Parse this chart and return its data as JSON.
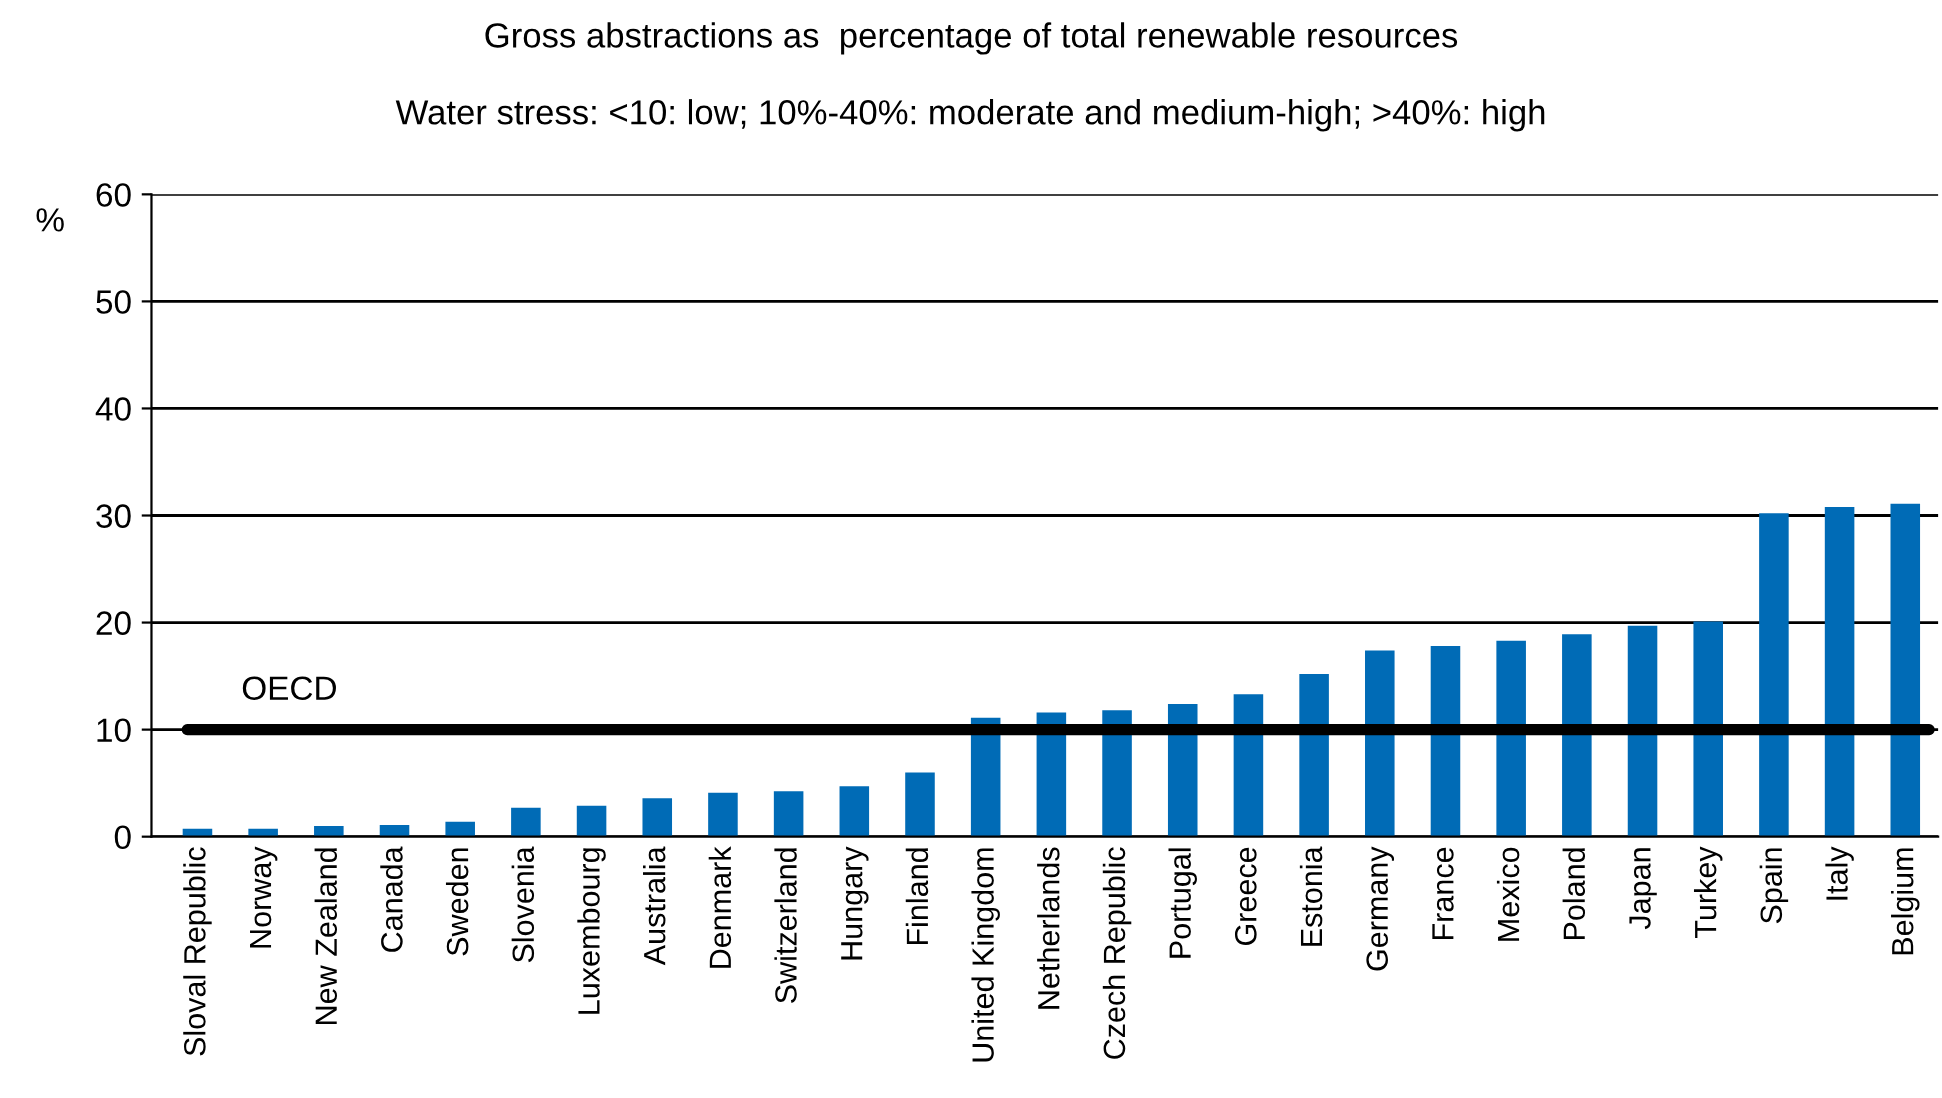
{
  "chart_data": {
    "type": "bar",
    "title": "Gross abstractions as  percentage of total renewable resources",
    "subtitle": "Water stress: <10: low; 10%-40%: moderate and medium-high; >40%: high",
    "ylabel": "%",
    "categories": [
      "Sloval Republic",
      "Norway",
      "New Zealand",
      "Canada",
      "Sweden",
      "Slovenia",
      "Luxembourg",
      "Australia",
      "Denmark",
      "Switzerland",
      "Hungary",
      "Finland",
      "United Kingdom",
      "Netherlands",
      "Czech Republic",
      "Portugal",
      "Greece",
      "Estonia",
      "Germany",
      "France",
      "Mexico",
      "Poland",
      "Japan",
      "Turkey",
      "Spain",
      "Italy",
      "Belgium"
    ],
    "values": [
      0.75,
      0.75,
      1.0,
      1.1,
      1.4,
      2.7,
      2.9,
      3.6,
      4.1,
      4.25,
      4.7,
      6.0,
      11.1,
      11.6,
      11.8,
      12.4,
      13.3,
      15.2,
      17.4,
      17.8,
      18.3,
      18.9,
      19.7,
      20.1,
      30.2,
      30.8,
      31.1
    ],
    "color": "#006bb6",
    "ylim": [
      0,
      60
    ],
    "yticks": [
      0,
      10,
      20,
      30,
      40,
      50,
      60
    ],
    "grid": "y",
    "ref_lines": [
      {
        "axis": "y",
        "value": 10,
        "label": "OECD",
        "color": "#000000",
        "line_style": "solid"
      }
    ]
  }
}
